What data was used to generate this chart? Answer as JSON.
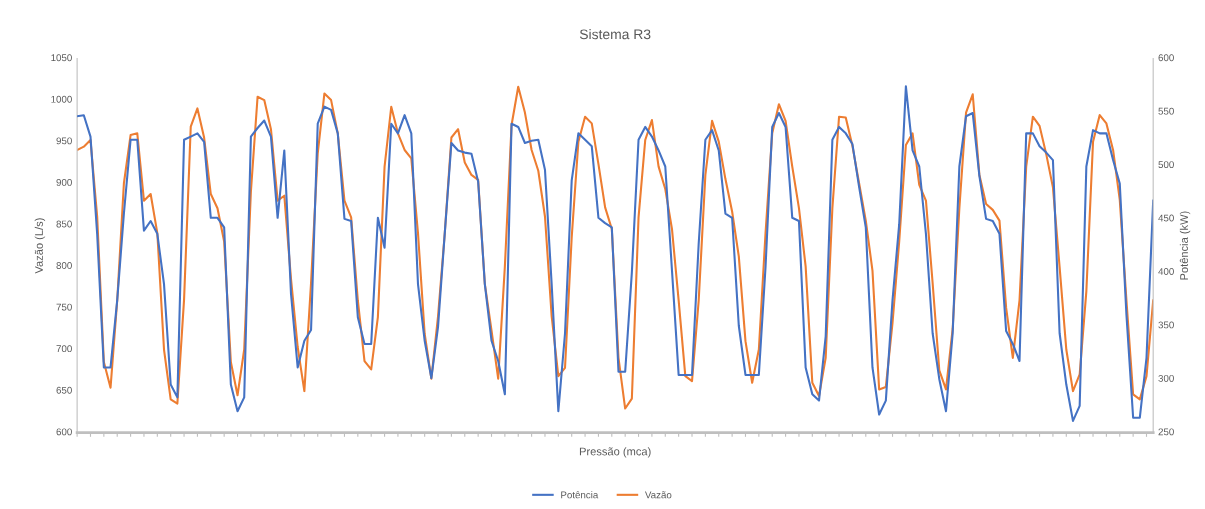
{
  "chart_data": {
    "type": "line",
    "title": "Sistema R3",
    "xlabel": "Pressão (mca)",
    "ylabel": "Vazão (L/s)",
    "y2label": "Potência (kW)",
    "categories": [
      null,
      null,
      null,
      null,
      null,
      null,
      null,
      null,
      null,
      null,
      null,
      null,
      null,
      null,
      null,
      null,
      null,
      null,
      null,
      null,
      null,
      null,
      null,
      null,
      null,
      null,
      null,
      null,
      null,
      null,
      null,
      null,
      null,
      null,
      null,
      null,
      null,
      null,
      null,
      null,
      null,
      null,
      null,
      null,
      null,
      null,
      null,
      null,
      null,
      null,
      null,
      null,
      null,
      null,
      null,
      null,
      null,
      null,
      null,
      null,
      null,
      null,
      null,
      null,
      null,
      null,
      null,
      null,
      null,
      null,
      null,
      null,
      null,
      null,
      null,
      null,
      null,
      null,
      null,
      null,
      null,
      null,
      null,
      null,
      null,
      null,
      null,
      null,
      null,
      null,
      null,
      null,
      null,
      null,
      null,
      null,
      null,
      null,
      null,
      null,
      null,
      null,
      null,
      null,
      null,
      null,
      null,
      null,
      null,
      null,
      null,
      null,
      null,
      null,
      null,
      null,
      null,
      null,
      null,
      null,
      null,
      null,
      null,
      null,
      null,
      null,
      null,
      null,
      null,
      null,
      null,
      null,
      null,
      null,
      null,
      null,
      null,
      null,
      null,
      null,
      null,
      null,
      null,
      null,
      null,
      null,
      null,
      null,
      null,
      null,
      null,
      null,
      null,
      null,
      null,
      null,
      null,
      null,
      null,
      null,
      null,
      null
    ],
    "ylim": [
      600,
      1050
    ],
    "yticks": [
      600,
      650,
      700,
      750,
      800,
      850,
      900,
      950,
      1000,
      1050
    ],
    "y2lim": [
      250,
      600
    ],
    "y2ticks": [
      250,
      300,
      350,
      400,
      450,
      500,
      550,
      600
    ],
    "grid": false,
    "legend": "bottom",
    "series": [
      {
        "name": "Potência",
        "color": "#4472c4",
        "axis": "y2",
        "values": [
          546,
          547,
          527,
          436,
          311,
          311,
          374,
          455,
          524,
          524,
          439,
          448,
          436,
          389,
          295,
          283,
          524,
          527,
          530,
          522,
          451,
          451,
          442,
          295,
          270,
          283,
          527,
          535,
          542,
          527,
          451,
          514,
          380,
          311,
          336,
          346,
          539,
          555,
          552,
          530,
          450,
          448,
          358,
          333,
          333,
          451,
          423,
          539,
          530,
          547,
          530,
          389,
          336,
          301,
          349,
          436,
          521,
          514,
          512,
          511,
          485,
          389,
          336,
          317,
          286,
          539,
          536,
          521,
          523,
          524,
          496,
          389,
          270,
          343,
          486,
          530,
          524,
          518,
          451,
          446,
          442,
          307,
          307,
          400,
          524,
          536,
          527,
          514,
          499,
          402,
          304,
          304,
          304,
          427,
          524,
          533,
          514,
          455,
          451,
          350,
          304,
          304,
          304,
          405,
          536,
          549,
          536,
          451,
          448,
          311,
          286,
          280,
          340,
          524,
          536,
          530,
          520,
          480,
          442,
          311,
          267,
          280,
          374,
          445,
          574,
          514,
          499,
          436,
          343,
          300,
          270,
          343,
          499,
          546,
          549,
          490,
          450,
          448,
          436,
          345,
          333,
          317,
          530,
          530,
          518,
          512,
          505,
          343,
          295,
          261,
          275,
          499,
          533,
          530,
          530,
          505,
          483,
          360,
          264,
          264,
          320,
          467
        ]
      },
      {
        "name": "Vazão",
        "color": "#ed7d31",
        "values": [
          940,
          944,
          952,
          860,
          685,
          654,
          759,
          900,
          958,
          960,
          879,
          887,
          840,
          700,
          640,
          635,
          760,
          968,
          990,
          955,
          887,
          870,
          830,
          685,
          645,
          700,
          890,
          1004,
          1000,
          965,
          879,
          885,
          785,
          703,
          650,
          780,
          936,
          1008,
          1000,
          960,
          879,
          859,
          759,
          686,
          676,
          739,
          920,
          992,
          960,
          940,
          930,
          840,
          719,
          665,
          740,
          839,
          955,
          965,
          925,
          910,
          904,
          779,
          723,
          665,
          800,
          970,
          1016,
          985,
          940,
          915,
          860,
          740,
          668,
          678,
          835,
          950,
          980,
          972,
          923,
          871,
          845,
          690,
          629,
          641,
          859,
          952,
          976,
          920,
          893,
          845,
          759,
          668,
          662,
          759,
          910,
          975,
          950,
          905,
          866,
          812,
          710,
          660,
          700,
          840,
          960,
          995,
          975,
          920,
          870,
          800,
          660,
          644,
          690,
          870,
          980,
          979,
          945,
          900,
          855,
          795,
          652,
          655,
          732,
          830,
          946,
          960,
          898,
          879,
          780,
          675,
          652,
          725,
          870,
          985,
          1007,
          910,
          875,
          868,
          855,
          750,
          690,
          759,
          920,
          980,
          969,
          935,
          895,
          799,
          700,
          650,
          670,
          770,
          950,
          982,
          972,
          940,
          880,
          759,
          646,
          640,
          668,
          759
        ]
      }
    ]
  }
}
